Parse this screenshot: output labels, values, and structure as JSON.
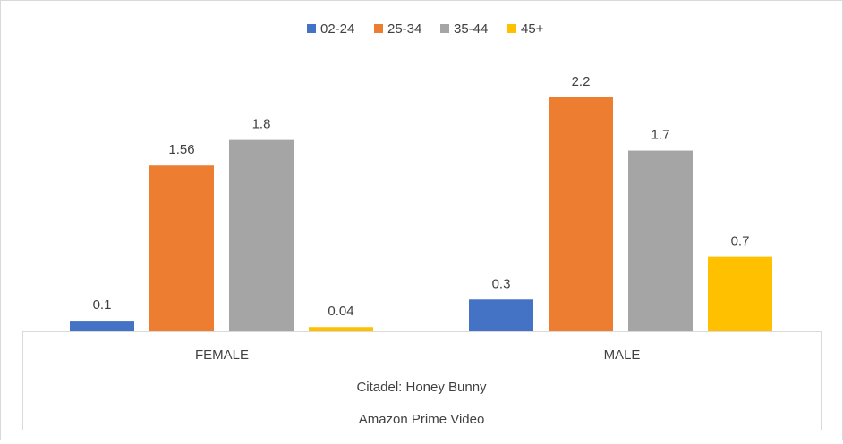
{
  "chart_data": {
    "type": "bar",
    "categories": [
      "FEMALE",
      "MALE"
    ],
    "series": [
      {
        "name": "02-24",
        "values": [
          0.1,
          0.3
        ],
        "labels": [
          "0.1",
          "0.3"
        ],
        "color": "#4472C4"
      },
      {
        "name": "25-34",
        "values": [
          1.56,
          2.2
        ],
        "labels": [
          "1.56",
          "2.2"
        ],
        "color": "#ED7D31"
      },
      {
        "name": "35-44",
        "values": [
          1.8,
          1.7
        ],
        "labels": [
          "1.8",
          "1.7"
        ],
        "color": "#A5A5A5"
      },
      {
        "name": "45+",
        "values": [
          0.04,
          0.7
        ],
        "labels": [
          "0.04",
          "0.7"
        ],
        "color": "#FFC000"
      }
    ],
    "group_labels": [
      "Citadel: Honey Bunny",
      "Amazon Prime Video"
    ],
    "legend_position": "top",
    "grid": false,
    "ylim": [
      0,
      2.2
    ]
  }
}
